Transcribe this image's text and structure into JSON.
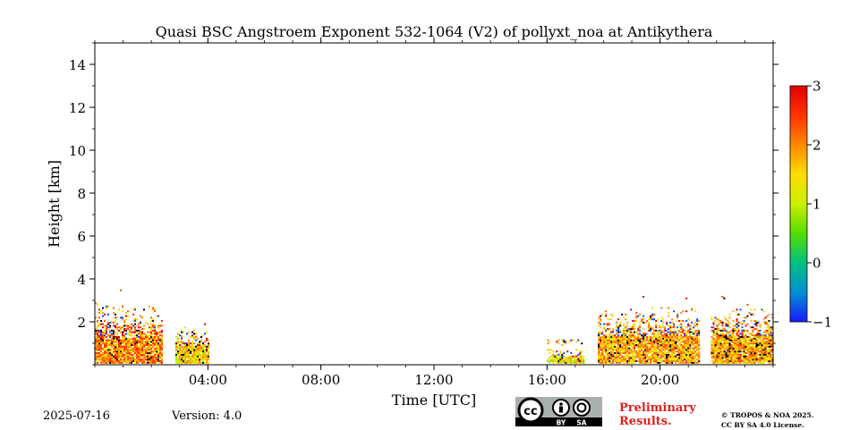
{
  "chart_data": {
    "type": "heatmap",
    "title": "Quasi BSC Angstroem Exponent 532-1064 (V2) of pollyxt_noa at Antikythera",
    "xlabel": "Time [UTC]",
    "ylabel": "Height [km]",
    "xlim_hours": [
      0,
      24
    ],
    "ylim_km": [
      0,
      15
    ],
    "x_ticks": [
      {
        "hour": 4,
        "label": "04:00"
      },
      {
        "hour": 8,
        "label": "08:00"
      },
      {
        "hour": 12,
        "label": "12:00"
      },
      {
        "hour": 16,
        "label": "16:00"
      },
      {
        "hour": 20,
        "label": "20:00"
      }
    ],
    "y_ticks": [
      {
        "value": 2,
        "label": "2"
      },
      {
        "value": 4,
        "label": "4"
      },
      {
        "value": 6,
        "label": "6"
      },
      {
        "value": 8,
        "label": "8"
      },
      {
        "value": 10,
        "label": "10"
      },
      {
        "value": 12,
        "label": "12"
      },
      {
        "value": 14,
        "label": "14"
      }
    ],
    "colorbar": {
      "min": -1,
      "max": 3,
      "ticks": [
        {
          "value": 3,
          "label": "3"
        },
        {
          "value": 2,
          "label": "2"
        },
        {
          "value": 1,
          "label": "1"
        },
        {
          "value": 0,
          "label": "0"
        },
        {
          "value": -1,
          "label": "−1"
        }
      ],
      "colors": [
        "#1a1aff",
        "#0090d0",
        "#00c080",
        "#55dd00",
        "#ccee00",
        "#ffdd00",
        "#ff8800",
        "#ff3300",
        "#e00000"
      ]
    },
    "data_segments": [
      {
        "start_h": 0.0,
        "end_h": 2.35,
        "dense_top_km": 1.2,
        "sparse_top_km": 3.2,
        "mean_value": 2.0
      },
      {
        "start_h": 2.85,
        "end_h": 4.0,
        "dense_top_km": 0.8,
        "sparse_top_km": 2.0,
        "mean_value": 1.5
      },
      {
        "start_h": 16.0,
        "end_h": 17.3,
        "dense_top_km": 0.35,
        "sparse_top_km": 0.8,
        "mean_value": 1.4
      },
      {
        "start_h": 17.8,
        "end_h": 21.4,
        "dense_top_km": 1.3,
        "sparse_top_km": 2.9,
        "mean_value": 1.8
      },
      {
        "start_h": 21.8,
        "end_h": 24.0,
        "dense_top_km": 1.3,
        "sparse_top_km": 2.9,
        "mean_value": 1.8
      }
    ]
  },
  "footer": {
    "date": "2025-07-16",
    "version": "Version: 4.0",
    "preliminary": "Preliminary Results.",
    "copyright_line1": "© TROPOS & NOA 2025.",
    "copyright_line2": "CC BY SA 4.0 License."
  },
  "license_badge": {
    "cc": "cc",
    "by": "BY",
    "sa": "SA"
  }
}
